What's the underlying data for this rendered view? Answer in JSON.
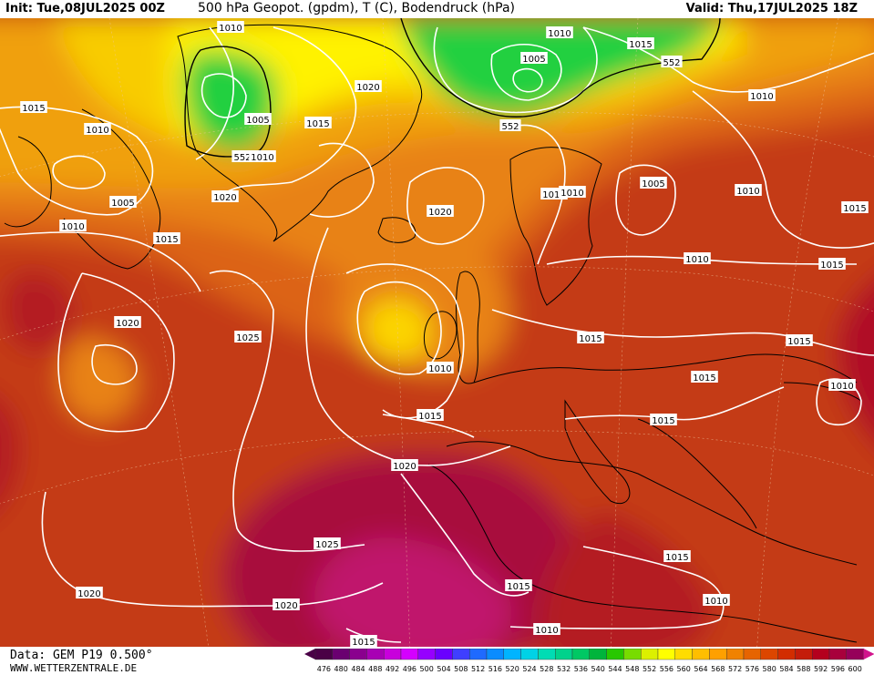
{
  "header": {
    "init": "Init: Tue,08JUL2025 00Z",
    "title": "500 hPa Geopot. (gpdm), T (C), Bodendruck (hPa)",
    "valid": "Valid: Thu,17JUL2025 18Z"
  },
  "footer": {
    "source": "Data: GEM P19 0.500°",
    "website": "WWW.WETTERZENTRALE.DE"
  },
  "map": {
    "field": "500 hPa geopotential (gpdm)",
    "pressure_labels": [
      {
        "text": "1010",
        "pos": [
          253,
          30
        ]
      },
      {
        "text": "1010",
        "pos": [
          614,
          36
        ]
      },
      {
        "text": "1015",
        "pos": [
          703,
          48
        ]
      },
      {
        "text": "1005",
        "pos": [
          586,
          64
        ]
      },
      {
        "text": "552",
        "pos": [
          737,
          68
        ]
      },
      {
        "text": "1015",
        "pos": [
          37,
          118
        ]
      },
      {
        "text": "1010",
        "pos": [
          107,
          142
        ]
      },
      {
        "text": "1005",
        "pos": [
          283,
          131
        ]
      },
      {
        "text": "1015",
        "pos": [
          349,
          135
        ]
      },
      {
        "text": "1020",
        "pos": [
          404,
          95
        ]
      },
      {
        "text": "552",
        "pos": [
          560,
          138
        ]
      },
      {
        "text": "1010",
        "pos": [
          836,
          105
        ]
      },
      {
        "text": "552",
        "pos": [
          266,
          172
        ]
      },
      {
        "text": "1010",
        "pos": [
          288,
          172
        ]
      },
      {
        "text": "1005",
        "pos": [
          135,
          222
        ]
      },
      {
        "text": "1020",
        "pos": [
          247,
          216
        ]
      },
      {
        "text": "1010",
        "pos": [
          608,
          213
        ]
      },
      {
        "text": "1010",
        "pos": [
          628,
          211
        ]
      },
      {
        "text": "1005",
        "pos": [
          717,
          201
        ]
      },
      {
        "text": "1010",
        "pos": [
          821,
          209
        ]
      },
      {
        "text": "1020",
        "pos": [
          483,
          232
        ]
      },
      {
        "text": "1015",
        "pos": [
          938,
          228
        ]
      },
      {
        "text": "1010",
        "pos": [
          80,
          248
        ]
      },
      {
        "text": "1015",
        "pos": [
          183,
          262
        ]
      },
      {
        "text": "1010",
        "pos": [
          765,
          284
        ]
      },
      {
        "text": "1015",
        "pos": [
          913,
          290
        ]
      },
      {
        "text": "1020",
        "pos": [
          140,
          354
        ]
      },
      {
        "text": "1025",
        "pos": [
          272,
          370
        ]
      },
      {
        "text": "1015",
        "pos": [
          648,
          371
        ]
      },
      {
        "text": "1015",
        "pos": [
          877,
          374
        ]
      },
      {
        "text": "1010",
        "pos": [
          483,
          404
        ]
      },
      {
        "text": "1015",
        "pos": [
          773,
          414
        ]
      },
      {
        "text": "1010",
        "pos": [
          924,
          423
        ]
      },
      {
        "text": "1015",
        "pos": [
          472,
          456
        ]
      },
      {
        "text": "1015",
        "pos": [
          728,
          461
        ]
      },
      {
        "text": "1020",
        "pos": [
          444,
          511
        ]
      },
      {
        "text": "1025",
        "pos": [
          359,
          597
        ]
      },
      {
        "text": "1015",
        "pos": [
          743,
          611
        ]
      },
      {
        "text": "1015",
        "pos": [
          569,
          643
        ]
      },
      {
        "text": "1020",
        "pos": [
          98,
          651
        ]
      },
      {
        "text": "1020",
        "pos": [
          314,
          664
        ]
      },
      {
        "text": "1010",
        "pos": [
          786,
          659
        ]
      },
      {
        "text": "1010",
        "pos": [
          600,
          691
        ]
      },
      {
        "text": "1015",
        "pos": [
          399,
          704
        ]
      }
    ]
  },
  "colorbar": {
    "ticks": [
      "476",
      "480",
      "484",
      "488",
      "492",
      "496",
      "500",
      "504",
      "508",
      "512",
      "516",
      "520",
      "524",
      "528",
      "532",
      "536",
      "540",
      "544",
      "548",
      "552",
      "556",
      "560",
      "564",
      "568",
      "572",
      "576",
      "580",
      "584",
      "588",
      "592",
      "596",
      "600"
    ],
    "colors": [
      "#4a0046",
      "#6a0070",
      "#8a008e",
      "#a800b4",
      "#c800dc",
      "#d400ff",
      "#9600ff",
      "#6a00ff",
      "#3f3fff",
      "#1f6aff",
      "#0a8cff",
      "#00b4ff",
      "#00d2e6",
      "#00dcb4",
      "#00d28c",
      "#00c864",
      "#00b43c",
      "#28c800",
      "#78dc00",
      "#dcf000",
      "#ffff00",
      "#ffdc00",
      "#ffbe00",
      "#ffa000",
      "#f08200",
      "#e66400",
      "#dc4600",
      "#d22d00",
      "#c41c0a",
      "#b4001e",
      "#a8003c",
      "#96005a"
    ]
  }
}
